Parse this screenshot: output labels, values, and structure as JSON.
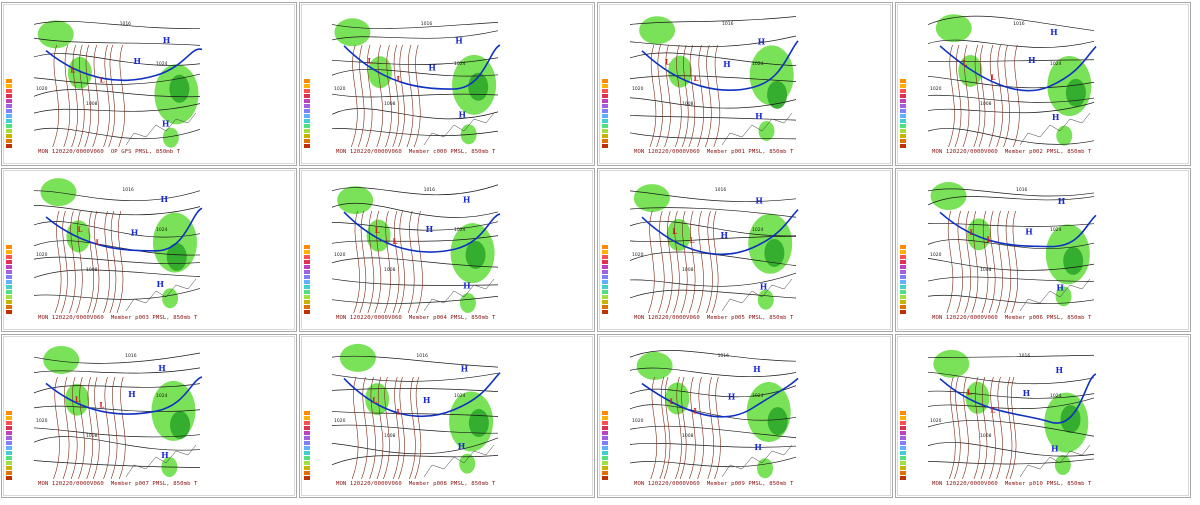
{
  "panels": [
    {
      "caption": "MON 120220/0000V060  OP GFS PMSL, 850mb T"
    },
    {
      "caption": "MON 120220/0000V060  Member c000 PMSL, 850mb T"
    },
    {
      "caption": "MON 120220/0000V060  Member p001 PMSL, 850mb T"
    },
    {
      "caption": "MON 120220/0000V060  Member p002 PMSL, 850mb T"
    },
    {
      "caption": "MON 120220/0000V060  Member p003 PMSL, 850mb T"
    },
    {
      "caption": "MON 120220/0000V060  Member p004 PMSL, 850mb T"
    },
    {
      "caption": "MON 120220/0000V060  Member p005 PMSL, 850mb T"
    },
    {
      "caption": "MON 120220/0000V060  Member p006 PMSL, 850mb T"
    },
    {
      "caption": "MON 120220/0000V060  Member p007 PMSL, 850mb T"
    },
    {
      "caption": "MON 120220/0000V060  Member p008 PMSL, 850mb T"
    },
    {
      "caption": "MON 120220/0000V060  Member p009 PMSL, 850mb T"
    },
    {
      "caption": "MON 120220/0000V060  Member p010 PMSL, 850mb T"
    }
  ],
  "map_labels": {
    "high": "H",
    "low": "L",
    "isobar_1020": "1020",
    "isobar_1016": "1016",
    "isobar_1024": "1024",
    "isobar_1008": "1008"
  },
  "colors": {
    "precip": "#6fe04a",
    "precip_dark": "#2fa82a",
    "isobar": "#1a1a1a",
    "temp_contour": "#7a2a1a",
    "freezing_line": "#1030c0",
    "high_label": "#1a2ad0",
    "low_label": "#d01818",
    "background": "#ffffff",
    "border": "#a8a8a8",
    "legend": [
      "#ff8c00",
      "#ffb000",
      "#ff5050",
      "#e03050",
      "#c040c0",
      "#a060e0",
      "#8080ff",
      "#60b0ff",
      "#40d0d0",
      "#50e080",
      "#a0e040",
      "#c8b400",
      "#e07000",
      "#c03000"
    ]
  }
}
